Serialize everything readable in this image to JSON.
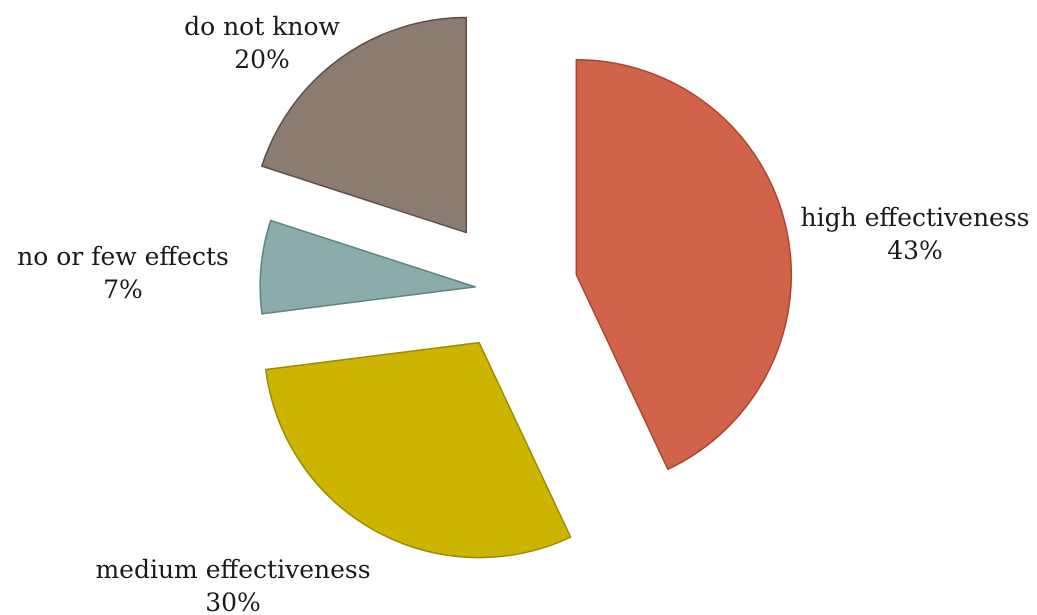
{
  "chart_data": {
    "type": "pie",
    "style": "exploded",
    "title": "",
    "slices": [
      {
        "label": "high effectiveness",
        "value": 43,
        "value_label": "43%",
        "color": "#D2634B",
        "stroke": "#A5462F"
      },
      {
        "label": "medium effectiveness",
        "value": 30,
        "value_label": "30%",
        "color": "#CCB400",
        "stroke": "#9C8A00"
      },
      {
        "label": "no or few effects",
        "value": 7,
        "value_label": "7%",
        "color": "#8CABAB",
        "stroke": "#5E8282"
      },
      {
        "label": "do not know",
        "value": 20,
        "value_label": "20%",
        "color": "#8B7B70",
        "stroke": "#5E4F45"
      }
    ]
  }
}
